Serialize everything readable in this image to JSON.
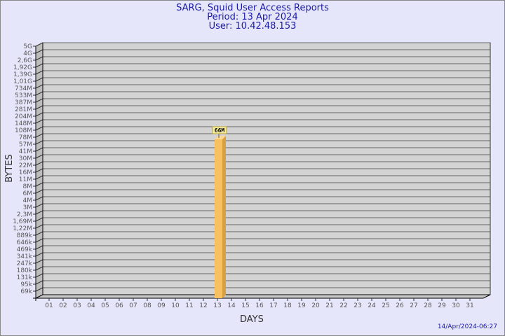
{
  "header": {
    "title": "SARG, Squid User Access Reports",
    "period": "Period: 13 Apr 2024",
    "user": "User: 10.42.48.153"
  },
  "footer": {
    "timestamp": "14/Apr/2024-06:27"
  },
  "chart_data": {
    "type": "bar",
    "xlabel": "DAYS",
    "ylabel": "BYTES",
    "y_scale": "log",
    "y_tick_labels": [
      "5G",
      "4G",
      "2,6G",
      "1,92G",
      "1,39G",
      "1,01G",
      "734M",
      "533M",
      "387M",
      "281M",
      "204M",
      "148M",
      "108M",
      "78M",
      "57M",
      "41M",
      "30M",
      "22M",
      "16M",
      "11M",
      "8M",
      "6M",
      "4M",
      "3M",
      "2,3M",
      "1,69M",
      "1,22M",
      "889k",
      "646k",
      "469k",
      "341k",
      "247k",
      "180k",
      "131k",
      "95k",
      "69k"
    ],
    "categories": [
      "01",
      "02",
      "03",
      "04",
      "05",
      "06",
      "07",
      "08",
      "09",
      "10",
      "11",
      "12",
      "13",
      "14",
      "15",
      "16",
      "17",
      "18",
      "19",
      "20",
      "21",
      "22",
      "23",
      "24",
      "25",
      "26",
      "27",
      "28",
      "29",
      "30",
      "31"
    ],
    "series": [
      {
        "points": [
          {
            "day": "13",
            "value": "66M"
          }
        ]
      }
    ],
    "grid": true,
    "colors": {
      "bar": "#f8c060",
      "bar_side": "#d8a040",
      "wall": "#d3d3d3",
      "label_bg": "#f8f0a0"
    }
  }
}
